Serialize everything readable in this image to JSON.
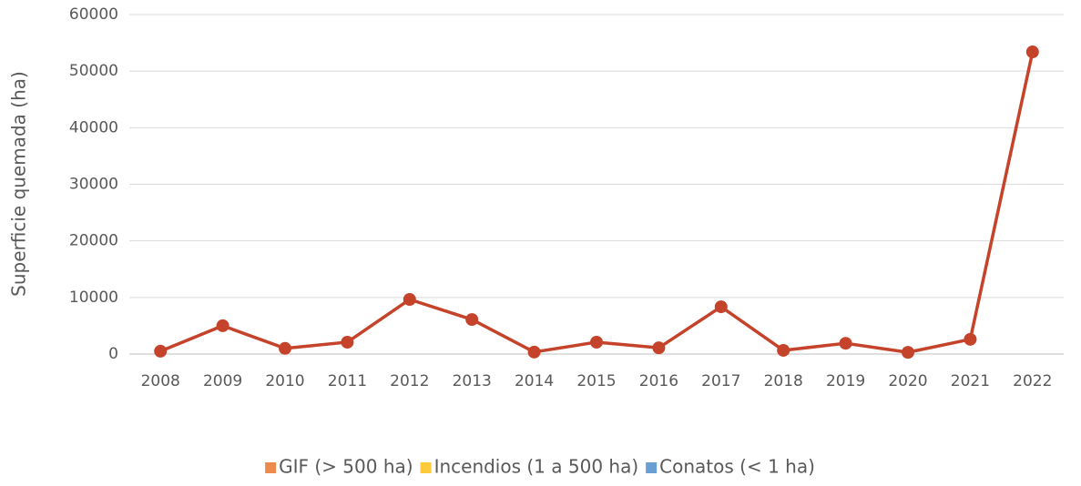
{
  "chart_data": {
    "type": "line",
    "y_label": "Superficie quemada (ha)",
    "categories": [
      "2008",
      "2009",
      "2010",
      "2011",
      "2012",
      "2013",
      "2014",
      "2015",
      "2016",
      "2017",
      "2018",
      "2019",
      "2020",
      "2021",
      "2022"
    ],
    "values": [
      500,
      5000,
      1000,
      2100,
      9650,
      6100,
      350,
      2100,
      1100,
      8350,
      650,
      1900,
      300,
      2600,
      53400
    ],
    "color": "#c5432a",
    "ylim": [
      0,
      60000
    ],
    "yticks": [
      0,
      10000,
      20000,
      30000,
      40000,
      50000,
      60000
    ],
    "grid": true,
    "legend": [
      {
        "name": "GIF (> 500 ha)",
        "color": "#ed8b4f"
      },
      {
        "name": "Incendios (1 a 500 ha)",
        "color": "#ffc93c"
      },
      {
        "name": "Conatos (< 1 ha)",
        "color": "#6a9fd4"
      }
    ],
    "legend_position": "bottom"
  }
}
